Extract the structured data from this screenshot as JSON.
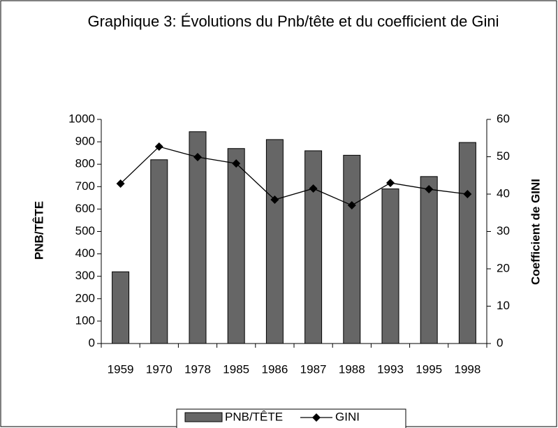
{
  "chart_data": {
    "type": "bar",
    "title": "Graphique 3: Évolutions du Pnb/tête et du coefficient de Gini",
    "y_label": "PNB/TÊTE",
    "y2_label": "Coefficient de GINI",
    "categories": [
      "1959",
      "1970",
      "1978",
      "1985",
      "1986",
      "1987",
      "1988",
      "1993",
      "1995",
      "1998"
    ],
    "series": [
      {
        "name": "PNB/TÊTE",
        "type": "bar",
        "color": "#666666",
        "values": [
          320,
          820,
          945,
          870,
          910,
          860,
          840,
          690,
          745,
          897
        ]
      },
      {
        "name": "GINI",
        "type": "line",
        "axis": "y2",
        "color": "#000000",
        "values": [
          42.8,
          52.7,
          49.9,
          48.2,
          38.5,
          41.5,
          37.0,
          43.0,
          41.3,
          40.0
        ]
      }
    ],
    "ylim": [
      0,
      1000
    ],
    "yticks": [
      0,
      100,
      200,
      300,
      400,
      500,
      600,
      700,
      800,
      900,
      1000
    ],
    "y2lim": [
      0,
      60
    ],
    "y2ticks": [
      0,
      10,
      20,
      30,
      40,
      50,
      60
    ],
    "grid": false,
    "legend": "bottom"
  }
}
